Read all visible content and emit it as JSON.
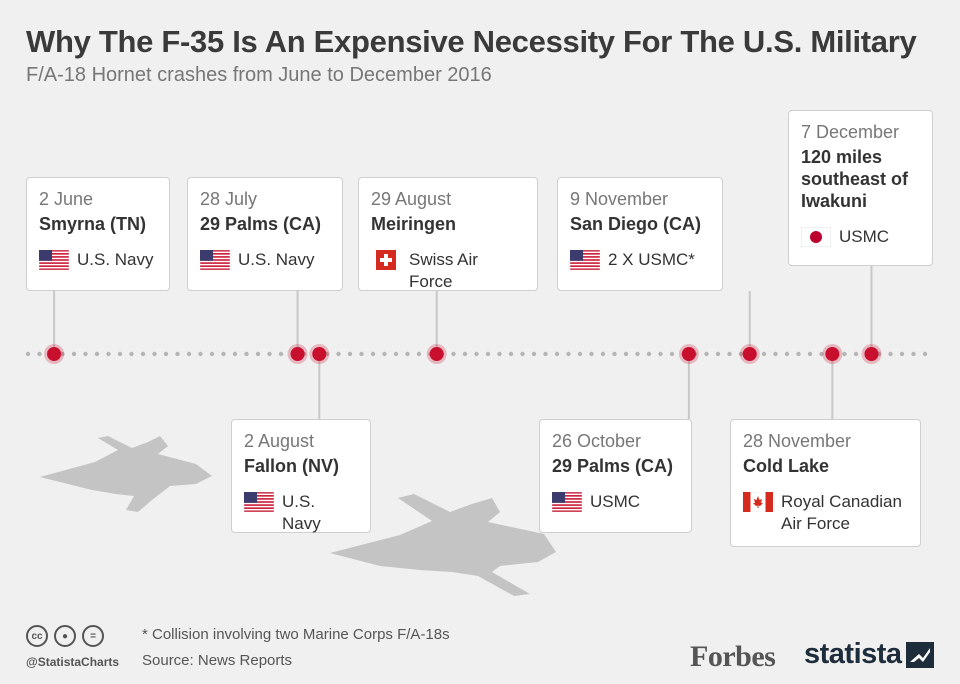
{
  "title": "Why The F-35 Is An Expensive Necessity For The U.S. Military",
  "subtitle": "F/A-18 Hornet crashes from June to December 2016",
  "colors": {
    "dot": "#c8102e",
    "line": "#c8c8c8",
    "plane": "#c4c4c4"
  },
  "chart_data": {
    "type": "timeline",
    "x_range": [
      "2016-05-27",
      "2016-12-20"
    ],
    "events": [
      {
        "date_label": "2 June",
        "date": "2016-06-02",
        "location": "Smyrna (TN)",
        "force": "U.S. Navy",
        "flag": "us-flag-icon",
        "position": "above"
      },
      {
        "date_label": "28 July",
        "date": "2016-07-28",
        "location": "29 Palms (CA)",
        "force": "U.S. Navy",
        "flag": "us-flag-icon",
        "position": "above"
      },
      {
        "date_label": "2 August",
        "date": "2016-08-02",
        "location": "Fallon (NV)",
        "force": "U.S. Navy",
        "flag": "us-flag-icon",
        "position": "below"
      },
      {
        "date_label": "29 August",
        "date": "2016-08-29",
        "location": "Meiringen",
        "force": "Swiss Air Force",
        "flag": "swiss-flag-icon",
        "position": "above"
      },
      {
        "date_label": "26 October",
        "date": "2016-10-26",
        "location": "29 Palms (CA)",
        "force": "USMC",
        "flag": "us-flag-icon",
        "position": "below"
      },
      {
        "date_label": "9 November",
        "date": "2016-11-09",
        "location": "San Diego (CA)",
        "force": "2 X USMC*",
        "flag": "us-flag-icon",
        "position": "above"
      },
      {
        "date_label": "28 November",
        "date": "2016-11-28",
        "location": "Cold Lake",
        "force": "Royal Canadian Air Force",
        "flag": "canada-flag-icon",
        "position": "below"
      },
      {
        "date_label": "7 December",
        "date": "2016-12-07",
        "location": "120 miles southeast of Iwakuni",
        "force": "USMC",
        "flag": "japan-flag-icon",
        "position": "above"
      }
    ]
  },
  "footnote": "* Collision involving two Marine Corps F/A-18s",
  "source": "Source: News Reports",
  "handle": "@StatistaCharts",
  "brand_forbes": "Forbes",
  "brand_statista": "statista"
}
